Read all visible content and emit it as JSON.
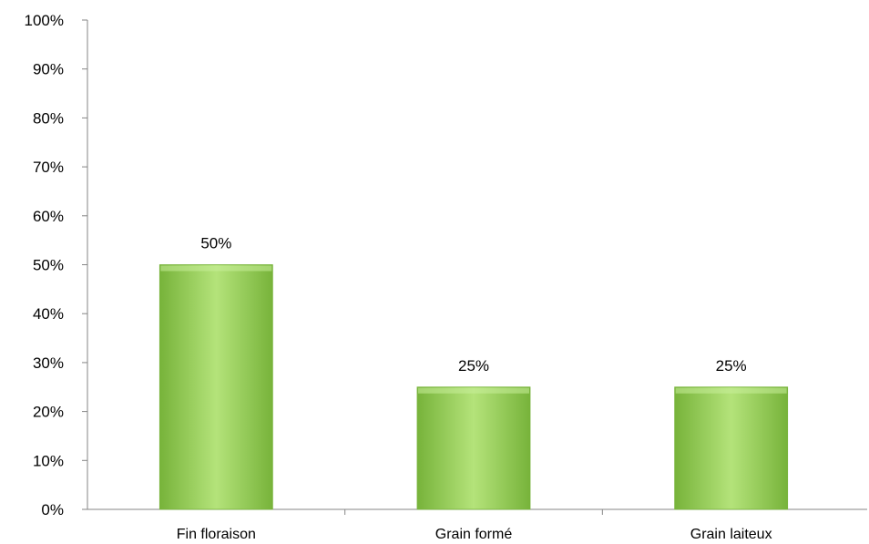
{
  "chart_data": {
    "type": "bar",
    "title": "",
    "xlabel": "",
    "ylabel": "",
    "categories": [
      "Fin floraison",
      "Grain formé",
      "Grain laiteux"
    ],
    "values": [
      50,
      25,
      25
    ],
    "data_labels": [
      "50%",
      "25%",
      "25%"
    ],
    "ylim": [
      0,
      100
    ],
    "y_ticks": [
      0,
      10,
      20,
      30,
      40,
      50,
      60,
      70,
      80,
      90,
      100
    ],
    "y_tick_labels": [
      "0%",
      "10%",
      "20%",
      "30%",
      "40%",
      "50%",
      "60%",
      "70%",
      "80%",
      "90%",
      "100%"
    ],
    "grid": false,
    "legend": "none",
    "colors": {
      "bar_fill_light": "#b4e37a",
      "bar_fill": "#92d050",
      "bar_fill_dark": "#77b33a",
      "axis": "#868686"
    }
  }
}
